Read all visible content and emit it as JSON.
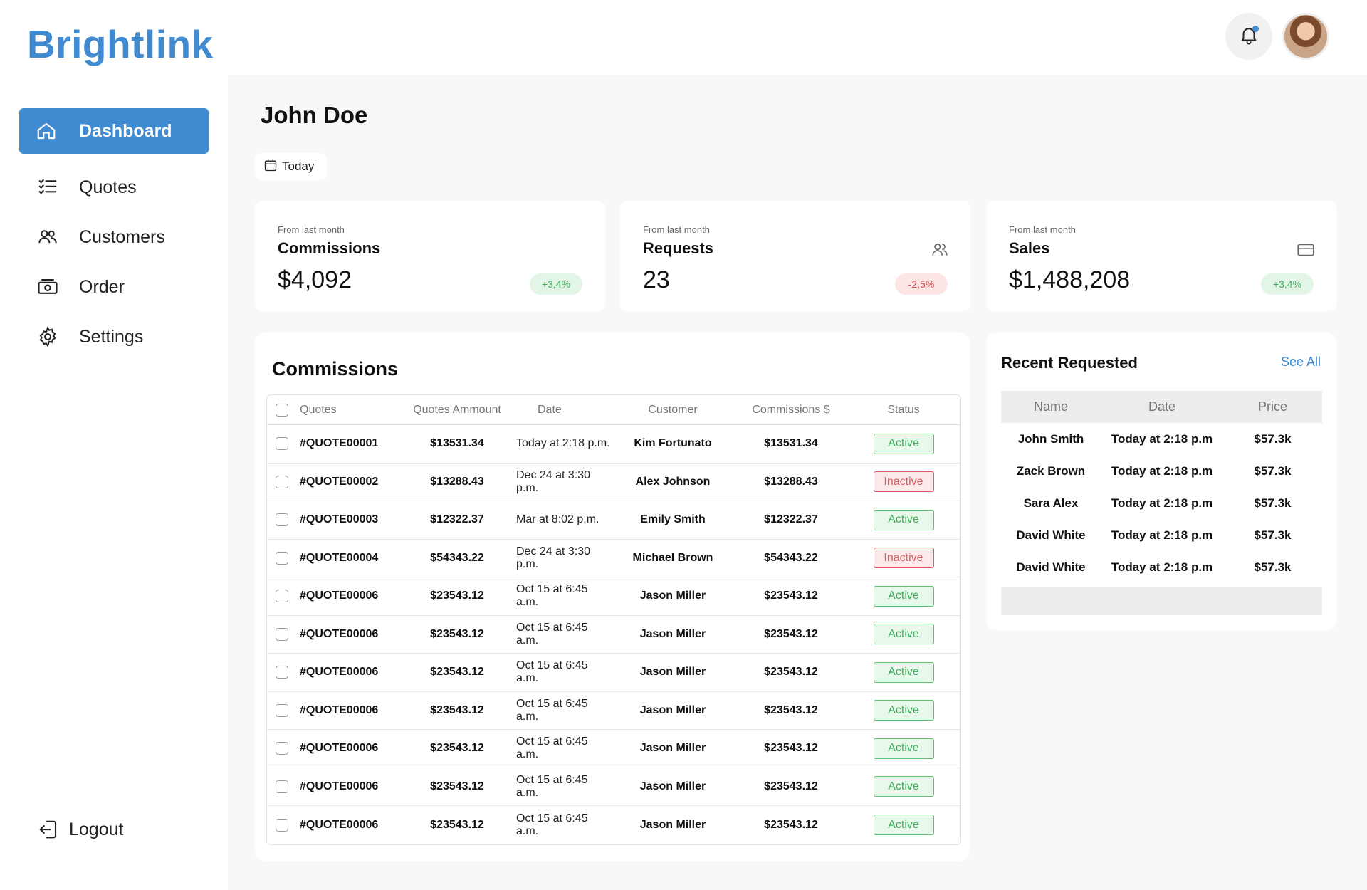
{
  "app": {
    "brand": "Brightlink"
  },
  "header": {
    "bell_icon": "bell-icon",
    "avatar": "user-avatar"
  },
  "sidebar": {
    "items": [
      {
        "label": "Dashboard",
        "icon": "home-icon",
        "active": true
      },
      {
        "label": "Quotes",
        "icon": "list-check-icon"
      },
      {
        "label": "Customers",
        "icon": "users-icon"
      },
      {
        "label": "Order",
        "icon": "cash-icon"
      },
      {
        "label": "Settings",
        "icon": "gear-icon"
      }
    ],
    "logout": "Logout"
  },
  "main": {
    "title": "John Doe",
    "date_filter": "Today",
    "stats": [
      {
        "sub": "From last month",
        "label": "Commissions",
        "value": "$4,092",
        "change": "+3,4%",
        "trend": "positive"
      },
      {
        "sub": "From last month",
        "label": "Requests",
        "value": "23",
        "change": "-2,5%",
        "trend": "negative",
        "icon": "users-icon"
      },
      {
        "sub": "From last month",
        "label": "Sales",
        "value": "$1,488,208",
        "change": "+3,4%",
        "trend": "positive",
        "icon": "card-icon"
      }
    ],
    "commissions": {
      "title": "Commissions",
      "columns": [
        "Quotes",
        "Quotes Ammount",
        "Date",
        "Customer",
        "Commissions $",
        "Status"
      ],
      "rows": [
        {
          "quote": "#QUOTE00001",
          "amount": "$13531.34",
          "date": "Today at 2:18 p.m.",
          "customer": "Kim Fortunato",
          "commission": "$13531.34",
          "status": "Active"
        },
        {
          "quote": "#QUOTE00002",
          "amount": "$13288.43",
          "date": "Dec 24 at 3:30 p.m.",
          "customer": "Alex Johnson",
          "commission": "$13288.43",
          "status": "Inactive"
        },
        {
          "quote": "#QUOTE00003",
          "amount": "$12322.37",
          "date": "Mar at 8:02 p.m.",
          "customer": "Emily Smith",
          "commission": "$12322.37",
          "status": "Active"
        },
        {
          "quote": "#QUOTE00004",
          "amount": "$54343.22",
          "date": "Dec 24 at 3:30 p.m.",
          "customer": "Michael Brown",
          "commission": "$54343.22",
          "status": "Inactive"
        },
        {
          "quote": "#QUOTE00006",
          "amount": "$23543.12",
          "date": "Oct 15 at 6:45 a.m.",
          "customer": "Jason Miller",
          "commission": "$23543.12",
          "status": "Active"
        },
        {
          "quote": "#QUOTE00006",
          "amount": "$23543.12",
          "date": "Oct 15 at 6:45 a.m.",
          "customer": "Jason Miller",
          "commission": "$23543.12",
          "status": "Active"
        },
        {
          "quote": "#QUOTE00006",
          "amount": "$23543.12",
          "date": "Oct 15 at 6:45 a.m.",
          "customer": "Jason Miller",
          "commission": "$23543.12",
          "status": "Active"
        },
        {
          "quote": "#QUOTE00006",
          "amount": "$23543.12",
          "date": "Oct 15 at 6:45 a.m.",
          "customer": "Jason Miller",
          "commission": "$23543.12",
          "status": "Active"
        },
        {
          "quote": "#QUOTE00006",
          "amount": "$23543.12",
          "date": "Oct 15 at 6:45 a.m.",
          "customer": "Jason Miller",
          "commission": "$23543.12",
          "status": "Active"
        },
        {
          "quote": "#QUOTE00006",
          "amount": "$23543.12",
          "date": "Oct 15 at 6:45 a.m.",
          "customer": "Jason Miller",
          "commission": "$23543.12",
          "status": "Active"
        },
        {
          "quote": "#QUOTE00006",
          "amount": "$23543.12",
          "date": "Oct 15 at 6:45 a.m.",
          "customer": "Jason Miller",
          "commission": "$23543.12",
          "status": "Active"
        }
      ]
    },
    "recent": {
      "title": "Recent Requested",
      "see_all": "See All",
      "columns": [
        "Name",
        "Date",
        "Price"
      ],
      "rows": [
        {
          "name": "John Smith",
          "date": "Today at 2:18 p.m",
          "price": "$57.3k"
        },
        {
          "name": "Zack Brown",
          "date": "Today at 2:18 p.m",
          "price": "$57.3k"
        },
        {
          "name": "Sara Alex",
          "date": "Today at 2:18 p.m",
          "price": "$57.3k"
        },
        {
          "name": "David White",
          "date": "Today at 2:18 p.m",
          "price": "$57.3k"
        },
        {
          "name": "David White",
          "date": "Today at 2:18 p.m",
          "price": "$57.3k"
        }
      ]
    }
  },
  "colors": {
    "brand": "#3f8ad0",
    "active": "#3fae5c",
    "inactive": "#d65c62",
    "background": "#f8f8f8"
  }
}
